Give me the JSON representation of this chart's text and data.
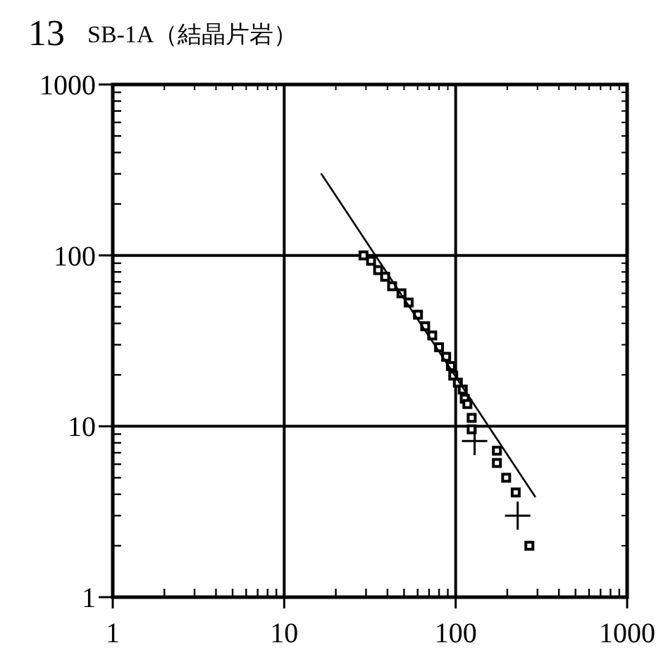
{
  "chart_data": {
    "type": "scatter",
    "title": "SB-1A（結晶片岩）",
    "annotations": [
      "13"
    ],
    "log": "xy",
    "xlim": [
      1,
      1000
    ],
    "ylim": [
      1,
      1000
    ],
    "xticks": [
      1,
      10,
      100,
      1000
    ],
    "yticks": [
      1,
      10,
      100,
      1000
    ],
    "grid": true,
    "series": [
      {
        "marker": "square",
        "color": "#000000",
        "x": [
          29,
          32.1,
          35.3,
          38.8,
          42.6,
          48.3,
          53.2,
          60.3,
          66.4,
          73,
          80,
          88,
          93.8,
          96.8,
          103,
          110,
          113,
          117,
          124,
          124,
          174,
          174,
          197,
          224,
          269
        ],
        "values": [
          100,
          93,
          82,
          75,
          66,
          60,
          53,
          45,
          38.5,
          34,
          29,
          25.5,
          22.5,
          19.8,
          18,
          16.4,
          14.5,
          13.5,
          11.2,
          9.6,
          7.2,
          6.1,
          5,
          4.1,
          2
        ]
      },
      {
        "type": "line",
        "marker": "none",
        "color": "#000000",
        "x": [
          16.4,
          292
        ],
        "values": [
          302,
          3.85
        ]
      },
      {
        "type": "scatter",
        "marker": "cross",
        "color": "#000000",
        "x": [
          129,
          230
        ],
        "values": [
          8.2,
          3
        ]
      }
    ]
  }
}
